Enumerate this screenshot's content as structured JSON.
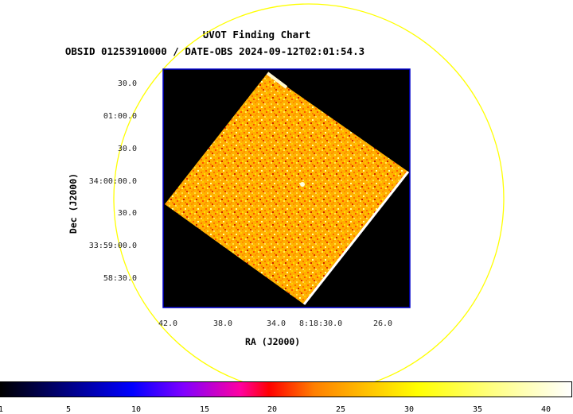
{
  "header": {
    "title": "UVOT Finding Chart",
    "subtitle": "OBSID 01253910000 / DATE-OBS 2024-09-12T02:01:54.3"
  },
  "axes": {
    "xlabel": "RA (J2000)",
    "ylabel": "Dec (J2000)",
    "x_ticks": [
      "42.0",
      "38.0",
      "34.0",
      "8:18:30.0",
      "26.0"
    ],
    "y_ticks": [
      "30.0",
      "01:00.0",
      "30.0",
      "34:00:00.0",
      "30.0",
      "33:59:00.0",
      "58:30.0"
    ]
  },
  "colorbar": {
    "ticks": [
      "1",
      "5",
      "10",
      "15",
      "20",
      "25",
      "30",
      "35",
      "40"
    ],
    "tick_values": [
      1,
      5,
      10,
      15,
      20,
      25,
      30,
      35,
      40
    ],
    "range": [
      1,
      42
    ]
  },
  "colors": {
    "frame": "#0000cc",
    "circle": "#ffff00",
    "background": "#000000"
  }
}
